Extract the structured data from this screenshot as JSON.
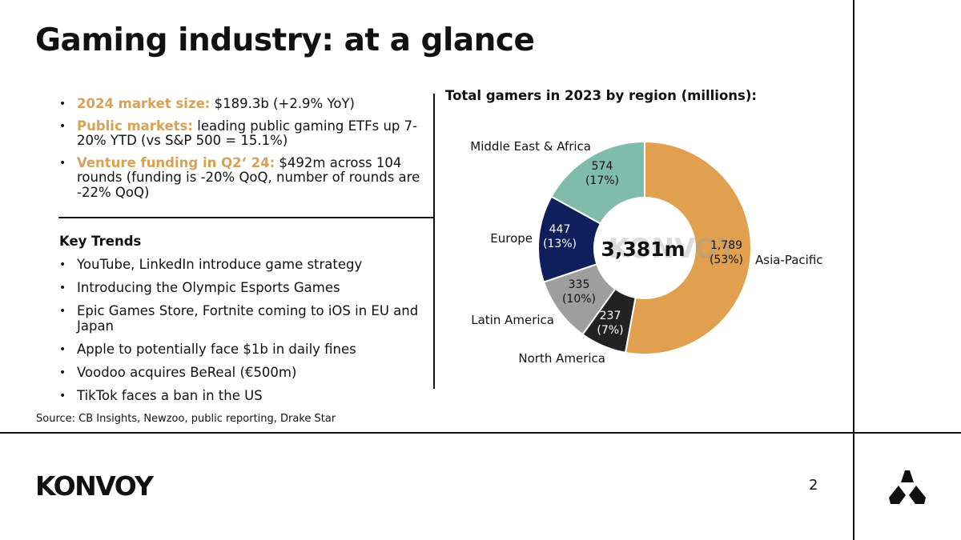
{
  "slide": {
    "title": "Gaming industry: at a glance",
    "page_number": "2",
    "source": "Source: CB Insights, Newzoo, public reporting, Drake Star",
    "logo_text": "KONVOY"
  },
  "highlights": [
    {
      "label": "2024 market size:",
      "text": " $189.3b (+2.9% YoY)"
    },
    {
      "label": "Public markets:",
      "text": " leading public gaming ETFs up 7-20% YTD (vs S&P 500 = 15.1%)"
    },
    {
      "label": "Venture funding in Q2‘ 24:",
      "text": " $492m across 104 rounds (funding is -20% QoQ, number of rounds are -22% QoQ)"
    }
  ],
  "key_trends": {
    "heading": "Key Trends",
    "items": [
      "YouTube, LinkedIn introduce game strategy",
      "Introducing the Olympic Esports Games",
      "Epic Games Store, Fortnite coming to iOS in EU and Japan",
      "Apple to potentially face $1b in daily fines",
      "Voodoo acquires BeReal (€500m)",
      "TikTok faces a ban in the US"
    ]
  },
  "colors": {
    "accent": "#d9a057",
    "asia_pacific": "#e0a050",
    "north_america": "#222222",
    "latin_america": "#9e9e9e",
    "europe": "#0e1f5b",
    "mea": "#80bcac"
  },
  "icons": {
    "brand_mark": "konvoy-tri-mark-icon"
  },
  "chart_data": {
    "type": "pie",
    "title": "Total gamers in 2023 by region (millions):",
    "center_label": "3,381m",
    "watermark": "KONVOY",
    "slices": [
      {
        "name": "Asia-Pacific",
        "value": 1789,
        "value_label": "1,789",
        "pct_label": "(53%)",
        "color": "#e0a050"
      },
      {
        "name": "North America",
        "value": 237,
        "value_label": "237",
        "pct_label": "(7%)",
        "color": "#222222"
      },
      {
        "name": "Latin America",
        "value": 335,
        "value_label": "335",
        "pct_label": "(10%)",
        "color": "#9e9e9e"
      },
      {
        "name": "Europe",
        "value": 447,
        "value_label": "447",
        "pct_label": "(13%)",
        "color": "#0e1f5b"
      },
      {
        "name": "Middle East & Africa",
        "value": 574,
        "value_label": "574",
        "pct_label": "(17%)",
        "color": "#80bcac"
      }
    ]
  }
}
